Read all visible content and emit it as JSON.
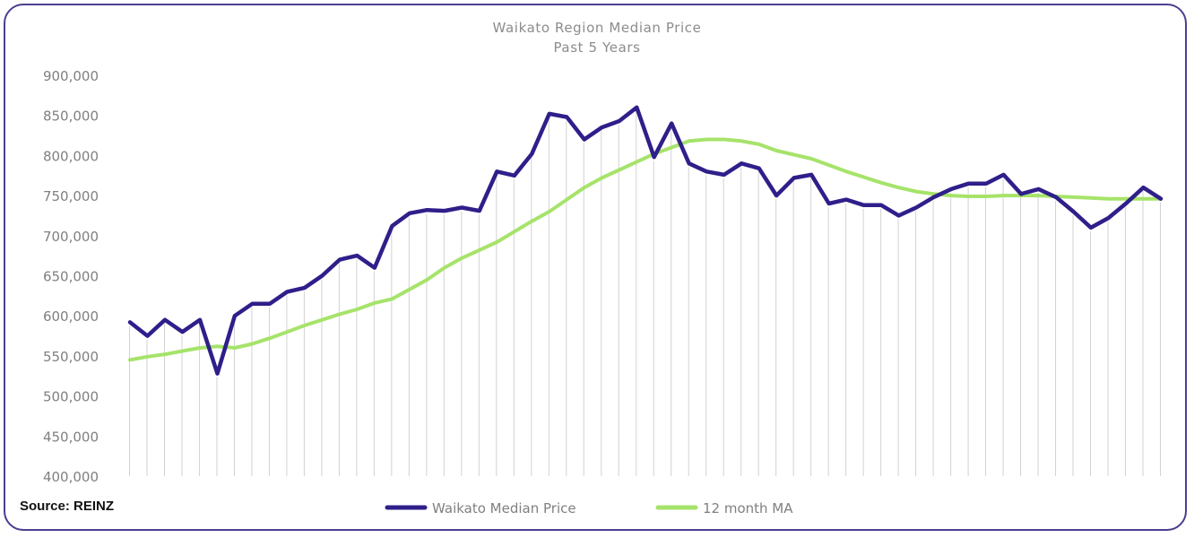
{
  "source": "Source: REINZ",
  "chart_data": {
    "type": "line",
    "title": "Waikato Region Median Price",
    "subtitle": "Past 5 Years",
    "ylim": [
      400000,
      900000
    ],
    "yticks": [
      "400,000",
      "450,000",
      "500,000",
      "550,000",
      "600,000",
      "650,000",
      "700,000",
      "750,000",
      "800,000",
      "850,000",
      "900,000"
    ],
    "ytick_values": [
      400000,
      450000,
      500000,
      550000,
      600000,
      650000,
      700000,
      750000,
      800000,
      850000,
      900000
    ],
    "grid": "vertical lines per month",
    "legend_position": "bottom",
    "series": [
      {
        "name": "Waikato Median Price",
        "color": "#2e1f8a",
        "values": [
          592000,
          575000,
          595000,
          580000,
          595000,
          528000,
          600000,
          615000,
          615000,
          630000,
          635000,
          650000,
          670000,
          675000,
          660000,
          712000,
          728000,
          732000,
          731000,
          735000,
          731000,
          780000,
          775000,
          802000,
          852000,
          848000,
          820000,
          835000,
          843000,
          860000,
          798000,
          840000,
          790000,
          780000,
          776000,
          790000,
          784000,
          750000,
          772000,
          776000,
          740000,
          745000,
          738000,
          738000,
          725000,
          735000,
          748000,
          758000,
          765000,
          765000,
          776000,
          752000,
          758000,
          748000,
          730000,
          710000,
          722000,
          740000,
          760000,
          746000
        ]
      },
      {
        "name": "12 month MA",
        "color": "#a6e36a",
        "values": [
          545000,
          549000,
          552000,
          556000,
          560000,
          562000,
          560000,
          565000,
          572000,
          580000,
          588000,
          595000,
          602000,
          608000,
          616000,
          621000,
          633000,
          645000,
          660000,
          672000,
          682000,
          692000,
          705000,
          718000,
          730000,
          745000,
          760000,
          772000,
          782000,
          792000,
          802000,
          810000,
          818000,
          820000,
          820000,
          818000,
          814000,
          806000,
          801000,
          796000,
          788000,
          780000,
          773000,
          766000,
          760000,
          755000,
          752000,
          750000,
          749000,
          749000,
          750000,
          750000,
          750000,
          749000,
          748000,
          747000,
          746000,
          746000,
          746000,
          746000
        ]
      }
    ]
  }
}
